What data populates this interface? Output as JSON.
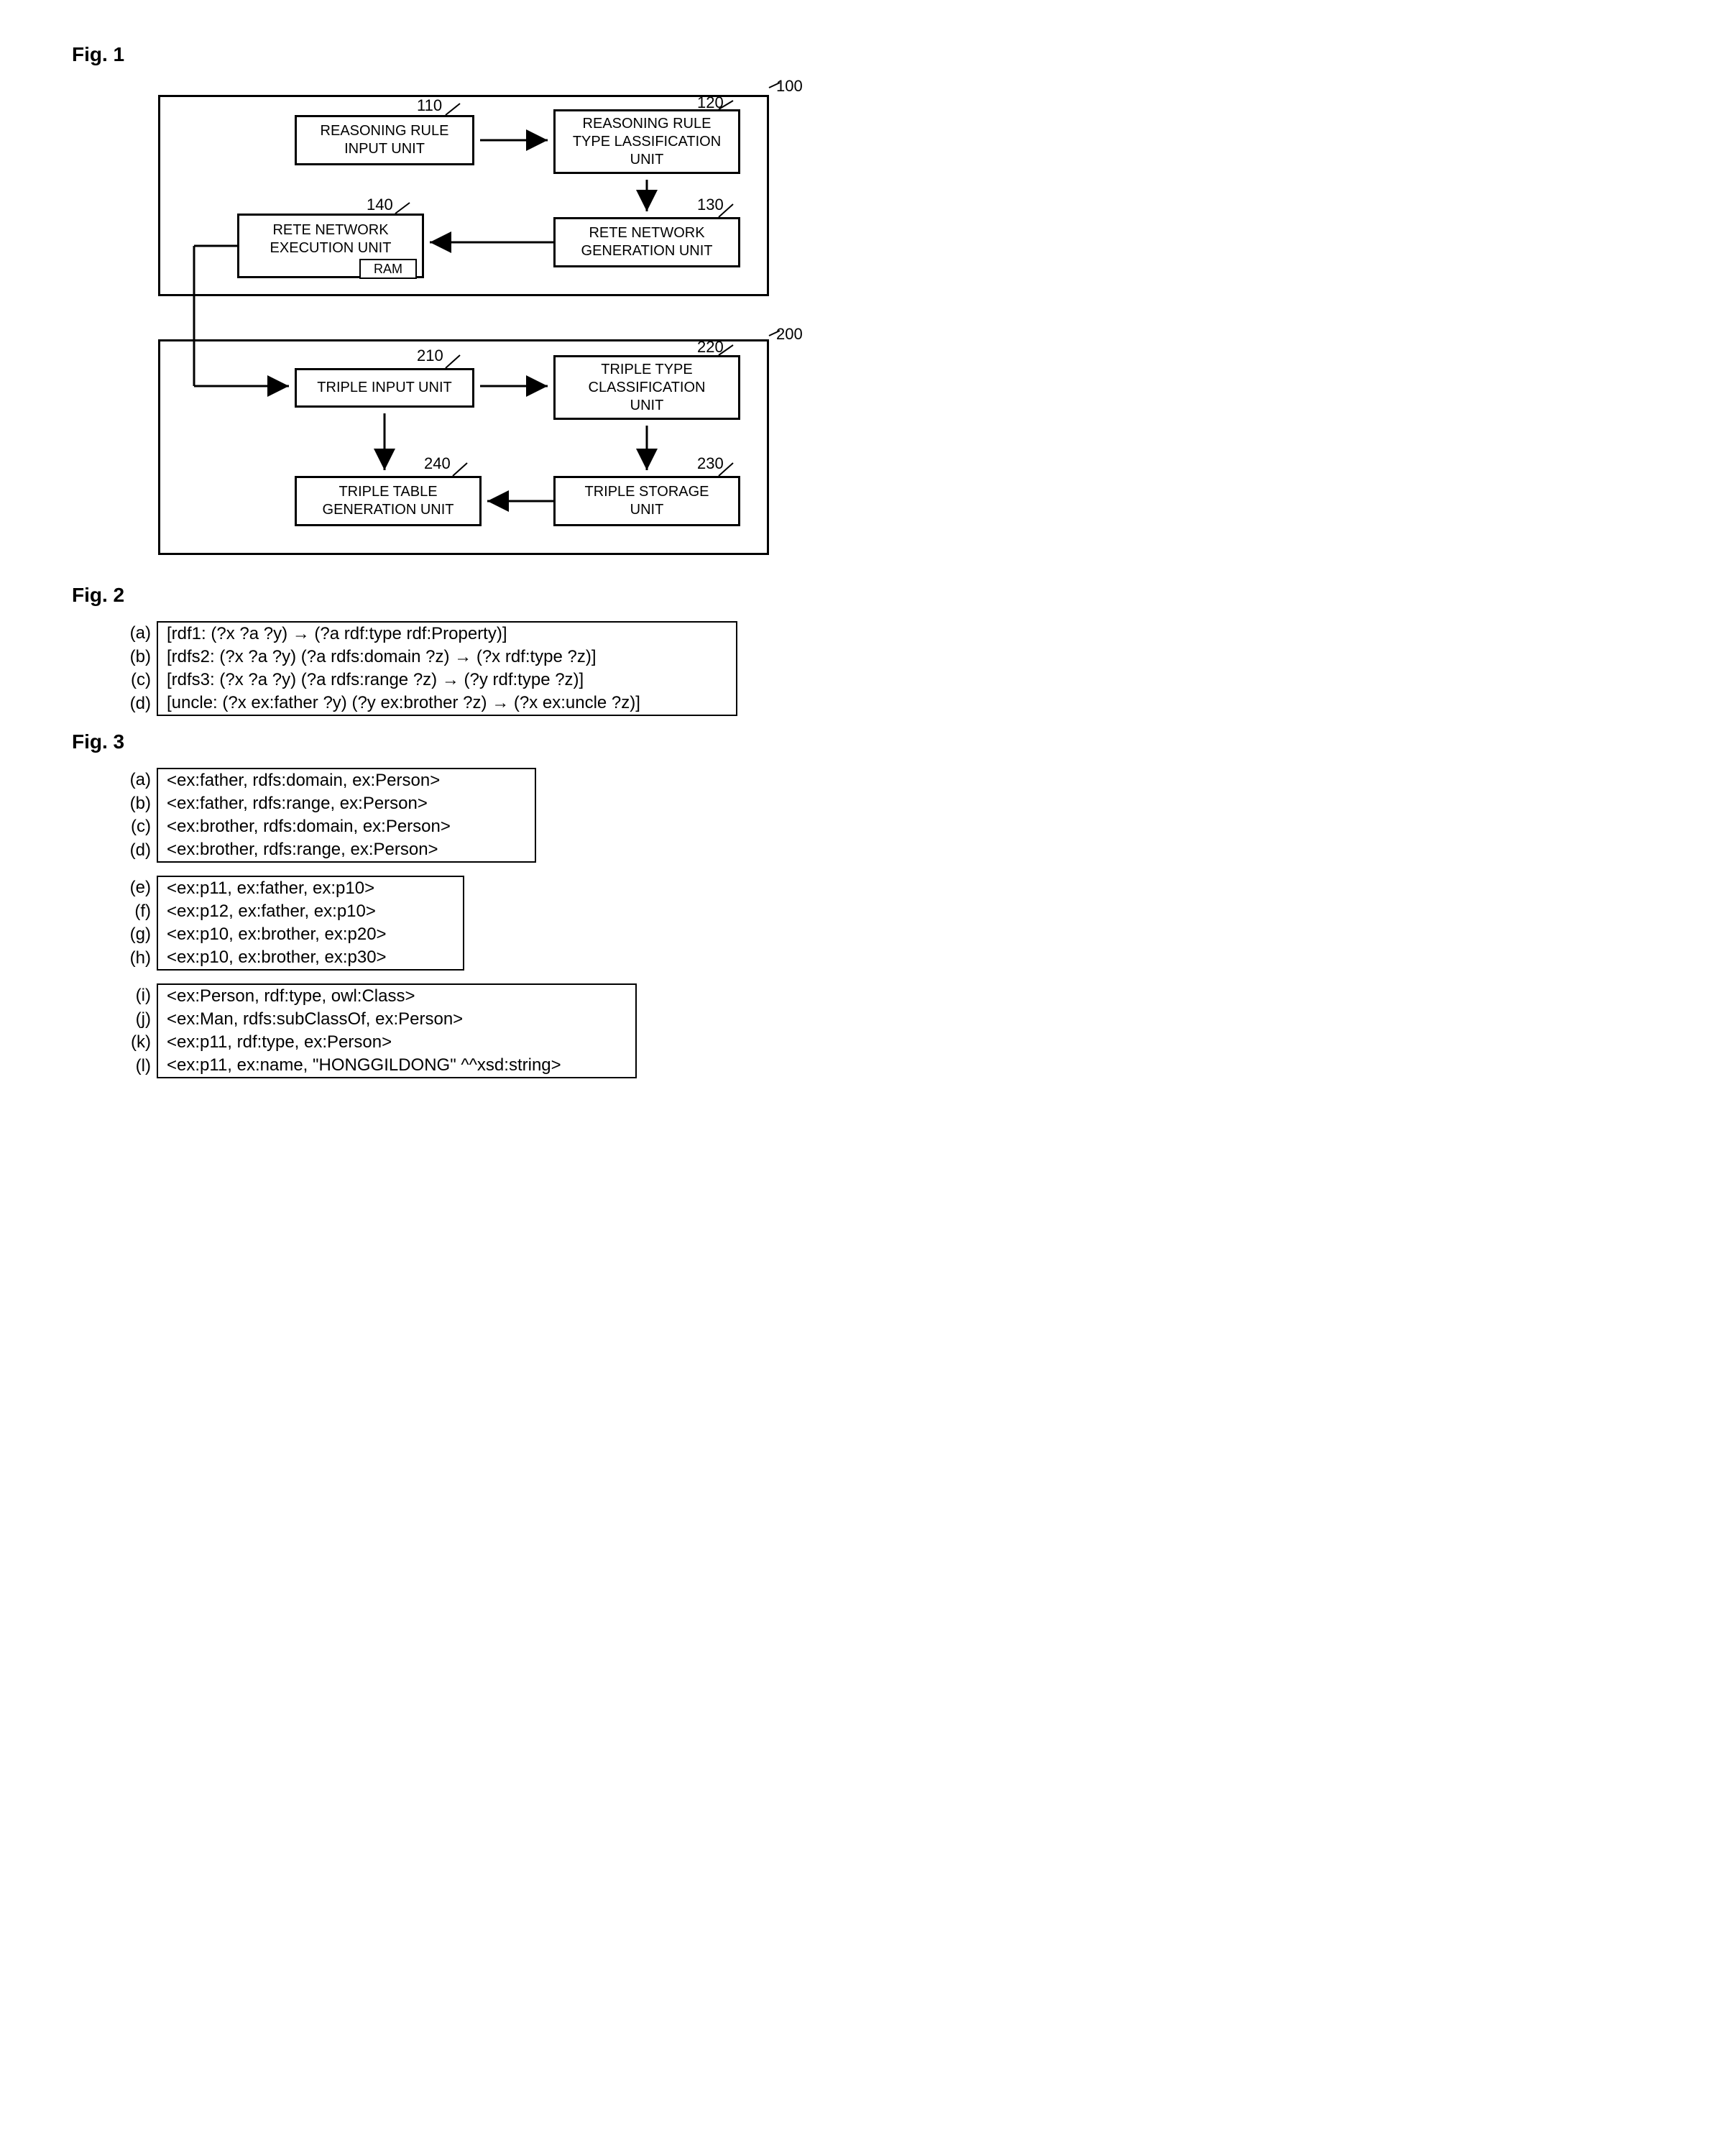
{
  "fig1": {
    "label": "Fig. 1",
    "module1": {
      "ref": "100",
      "boxes": {
        "b110": {
          "ref": "110",
          "text": "REASONING RULE\nINPUT UNIT"
        },
        "b120": {
          "ref": "120",
          "text": "REASONING RULE\nTYPE LASSIFICATION\nUNIT"
        },
        "b130": {
          "ref": "130",
          "text": "RETE NETWORK\nGENERATION UNIT"
        },
        "b140": {
          "ref": "140",
          "text": "RETE NETWORK\nEXECUTION UNIT",
          "sub": "RAM"
        }
      }
    },
    "module2": {
      "ref": "200",
      "boxes": {
        "b210": {
          "ref": "210",
          "text": "TRIPLE INPUT UNIT"
        },
        "b220": {
          "ref": "220",
          "text": "TRIPLE TYPE\nCLASSIFICATION\nUNIT"
        },
        "b230": {
          "ref": "230",
          "text": "TRIPLE STORAGE\nUNIT"
        },
        "b240": {
          "ref": "240",
          "text": "TRIPLE TABLE\nGENERATION UNIT"
        }
      }
    },
    "colors": {
      "stroke": "#000000",
      "bg": "#ffffff"
    }
  },
  "fig2": {
    "label": "Fig. 2",
    "rows": [
      {
        "key": "(a)",
        "text": "[rdf1: (?x ?a ?y) → (?a rdf:type rdf:Property)]"
      },
      {
        "key": "(b)",
        "text": "[rdfs2: (?x ?a ?y)  (?a rdfs:domain ?z) → (?x rdf:type ?z)]"
      },
      {
        "key": "(c)",
        "text": "[rdfs3: (?x ?a ?y)  (?a rdfs:range ?z) → (?y rdf:type ?z)]"
      },
      {
        "key": "(d)",
        "text": "[uncle: (?x ex:father ?y)  (?y ex:brother ?z) → (?x ex:uncle ?z)]"
      }
    ]
  },
  "fig3": {
    "label": "Fig. 3",
    "group1": [
      {
        "key": "(a)",
        "text": "<ex:father, rdfs:domain, ex:Person>"
      },
      {
        "key": "(b)",
        "text": "<ex:father, rdfs:range, ex:Person>"
      },
      {
        "key": "(c)",
        "text": "<ex:brother, rdfs:domain, ex:Person>"
      },
      {
        "key": "(d)",
        "text": "<ex:brother, rdfs:range, ex:Person>"
      }
    ],
    "group2": [
      {
        "key": "(e)",
        "text": "<ex:p11, ex:father, ex:p10>"
      },
      {
        "key": "(f)",
        "text": "<ex:p12, ex:father, ex:p10>"
      },
      {
        "key": "(g)",
        "text": "<ex:p10, ex:brother, ex:p20>"
      },
      {
        "key": "(h)",
        "text": "<ex:p10, ex:brother, ex:p30>"
      }
    ],
    "group3": [
      {
        "key": "(i)",
        "text": "<ex:Person, rdf:type, owl:Class>"
      },
      {
        "key": "(j)",
        "text": "<ex:Man, rdfs:subClassOf, ex:Person>"
      },
      {
        "key": "(k)",
        "text": "<ex:p11, rdf:type, ex:Person>"
      },
      {
        "key": "(l)",
        "text": "<ex:p11, ex:name, \"HONGGILDONG\" ^^xsd:string>"
      }
    ]
  }
}
